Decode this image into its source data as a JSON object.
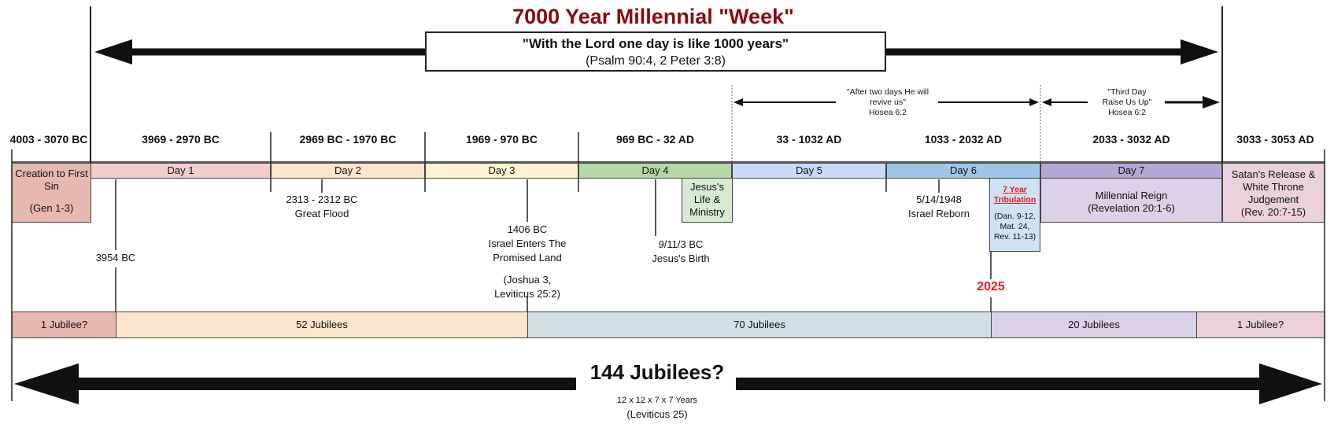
{
  "title": "7000 Year Millennial \"Week\"",
  "quote": {
    "main": "\"With the Lord one day is like 1000 years\"",
    "ref": "(Psalm 90:4, 2 Peter 3:8)"
  },
  "hosea_two_days": {
    "line1": "\"After two days He will",
    "line2": "revive us\"",
    "ref": "Hosea 6:2"
  },
  "hosea_third_day": {
    "line1": "\"Third Day",
    "line2": "Raise Us Up\"",
    "ref": "Hosea 6:2"
  },
  "headers": [
    "4003 - 3070 BC",
    "3969 - 2970 BC",
    "2969 BC - 1970 BC",
    "1969 - 970 BC",
    "969 BC - 32 AD",
    "33 - 1032 AD",
    "1033 - 2032 AD",
    "2033 - 3032 AD",
    "3033 - 3053 AD"
  ],
  "days": [
    "Day 1",
    "Day 2",
    "Day 3",
    "Day 4",
    "Day 5",
    "Day 6",
    "Day 7"
  ],
  "creation": {
    "line1": "Creation to First",
    "line2": "Sin",
    "ref": "(Gen 1-3)"
  },
  "satan": {
    "line1": "Satan's Release &",
    "line2": "White Throne",
    "line3": "Judgement",
    "ref": "(Rev. 20:7-15)"
  },
  "millennial": {
    "line1": "Millennial Reign",
    "line2": "(Revelation 20:1-6)"
  },
  "jesus_ministry": {
    "line1": "Jesus's",
    "line2": "Life &",
    "line3": "Ministry"
  },
  "tribulation": {
    "title1": "7 Year",
    "title2": "Tribulation",
    "ref1": "(Dan. 9-12,",
    "ref2": "Mat. 24,",
    "ref3": "Rev. 11-13)"
  },
  "events": {
    "flood": {
      "date": "2313 - 2312 BC",
      "label": "Great Flood"
    },
    "adam": {
      "date": "3954 BC"
    },
    "israel_enters": {
      "date": "1406 BC",
      "label1": "Israel Enters The",
      "label2": "Promised Land",
      "ref1": "(Joshua 3,",
      "ref2": "Leviticus 25:2)"
    },
    "jesus_birth": {
      "date": "9/11/3 BC",
      "label": "Jesus's Birth"
    },
    "israel_reborn": {
      "date": "5/14/1948",
      "label": "Israel Reborn"
    },
    "year_2025": "2025"
  },
  "jubilees": [
    "1 Jubilee?",
    "52 Jubilees",
    "70 Jubilees",
    "20 Jubilees",
    "1 Jubilee?"
  ],
  "bottom": {
    "title": "144 Jubilees?",
    "formula": "12 x 12 x 7 x 7 Years",
    "ref": "(Leviticus 25)"
  },
  "colors": {
    "title": "#8b0b0b",
    "accent_red": "#e8171b",
    "day1": "#f4cccc",
    "day2": "#fce5cd",
    "day3": "#fff2cc",
    "day4": "#b6d7a8",
    "day5": "#c9daf8",
    "day6": "#9fc5e8",
    "day7": "#b4a7d6",
    "creation": "#e6b8af",
    "satan": "#ead1dc",
    "millennial": "#d9d2e9",
    "ministry": "#d9ead3",
    "tribulation": "#cfe2f3",
    "jub_52": "#fce5cd",
    "jub_70": "#d0e0e3",
    "jub_20": "#d9d2e9"
  }
}
